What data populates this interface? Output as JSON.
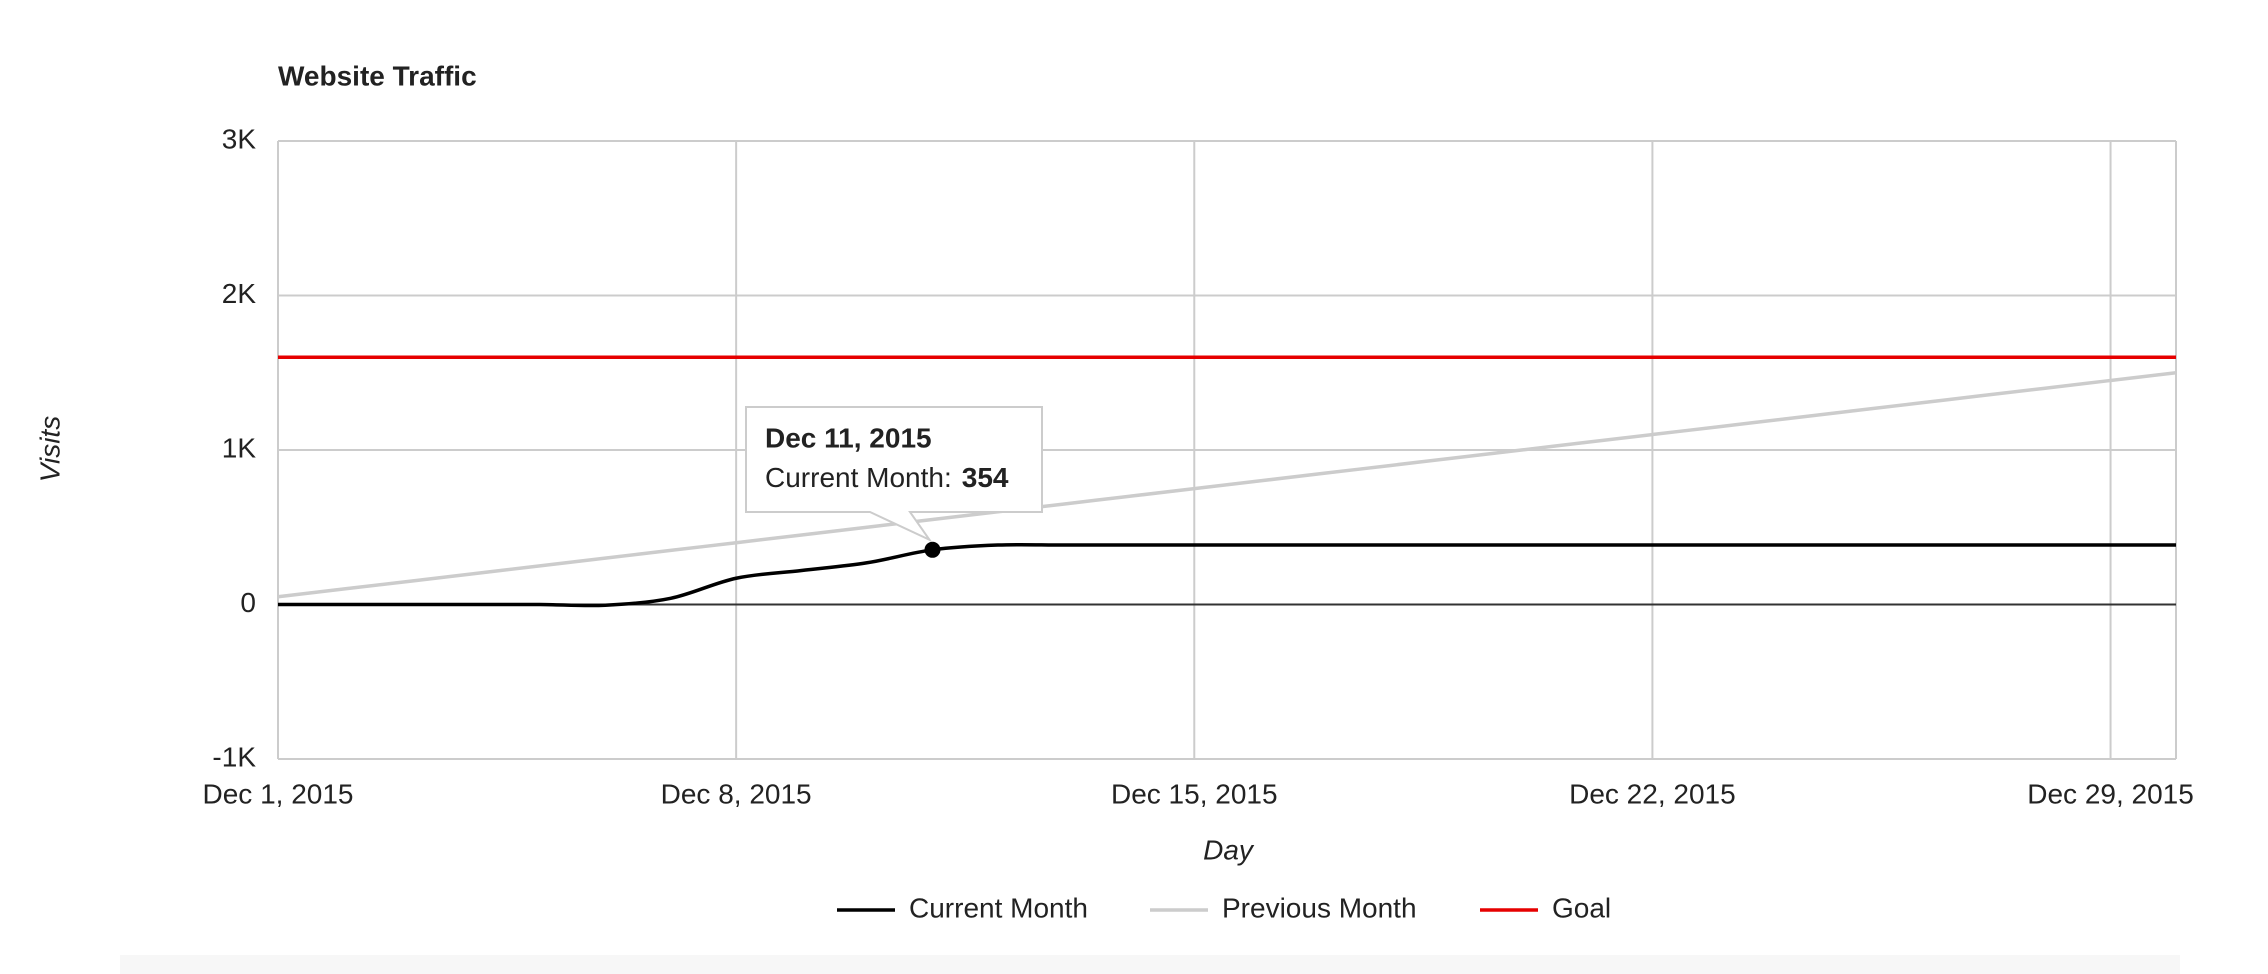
{
  "chart_data": {
    "type": "line",
    "title": "Website Traffic",
    "x_label": "Day",
    "y_label": "Visits",
    "x": [
      "Dec 1, 2015",
      "Dec 2, 2015",
      "Dec 3, 2015",
      "Dec 4, 2015",
      "Dec 5, 2015",
      "Dec 6, 2015",
      "Dec 7, 2015",
      "Dec 8, 2015",
      "Dec 9, 2015",
      "Dec 10, 2015",
      "Dec 11, 2015",
      "Dec 12, 2015",
      "Dec 13, 2015",
      "Dec 14, 2015",
      "Dec 15, 2015",
      "Dec 16, 2015",
      "Dec 17, 2015",
      "Dec 18, 2015",
      "Dec 19, 2015",
      "Dec 20, 2015",
      "Dec 21, 2015",
      "Dec 22, 2015",
      "Dec 23, 2015",
      "Dec 24, 2015",
      "Dec 25, 2015",
      "Dec 26, 2015",
      "Dec 27, 2015",
      "Dec 28, 2015",
      "Dec 29, 2015",
      "Dec 30, 2015"
    ],
    "series": [
      {
        "name": "Current Month",
        "color": "#000000",
        "values": [
          0,
          0,
          0,
          0,
          0,
          -5,
          40,
          170,
          220,
          270,
          354,
          385,
          385,
          385,
          385,
          385,
          385,
          385,
          385,
          385,
          385,
          385,
          385,
          385,
          385,
          385,
          385,
          385,
          385,
          385
        ]
      },
      {
        "name": "Previous Month",
        "color": "#cccccc",
        "values": [
          50,
          100,
          150,
          200,
          250,
          300,
          350,
          400,
          450,
          500,
          550,
          600,
          650,
          700,
          750,
          800,
          850,
          900,
          950,
          1000,
          1050,
          1100,
          1150,
          1200,
          1250,
          1300,
          1350,
          1400,
          1450,
          1500
        ]
      },
      {
        "name": "Goal",
        "color": "#e60000",
        "values": [
          1600,
          1600,
          1600,
          1600,
          1600,
          1600,
          1600,
          1600,
          1600,
          1600,
          1600,
          1600,
          1600,
          1600,
          1600,
          1600,
          1600,
          1600,
          1600,
          1600,
          1600,
          1600,
          1600,
          1600,
          1600,
          1600,
          1600,
          1600,
          1600,
          1600
        ]
      }
    ],
    "xlim": [
      "Dec 1, 2015",
      "Dec 30, 2015"
    ],
    "xticks": [
      "Dec 1, 2015",
      "Dec 8, 2015",
      "Dec 15, 2015",
      "Dec 22, 2015",
      "Dec 29, 2015"
    ],
    "ylim": [
      -1000,
      3000
    ],
    "yticks": [
      {
        "value": -1000,
        "label": "-1K"
      },
      0,
      {
        "value": 1000,
        "label": "1K"
      },
      {
        "value": 2000,
        "label": "2K"
      },
      {
        "value": 3000,
        "label": "3K"
      }
    ],
    "grid": true,
    "legend": "bottom",
    "tooltip": {
      "point": 10,
      "series": 0,
      "label": "Current Month:"
    }
  }
}
